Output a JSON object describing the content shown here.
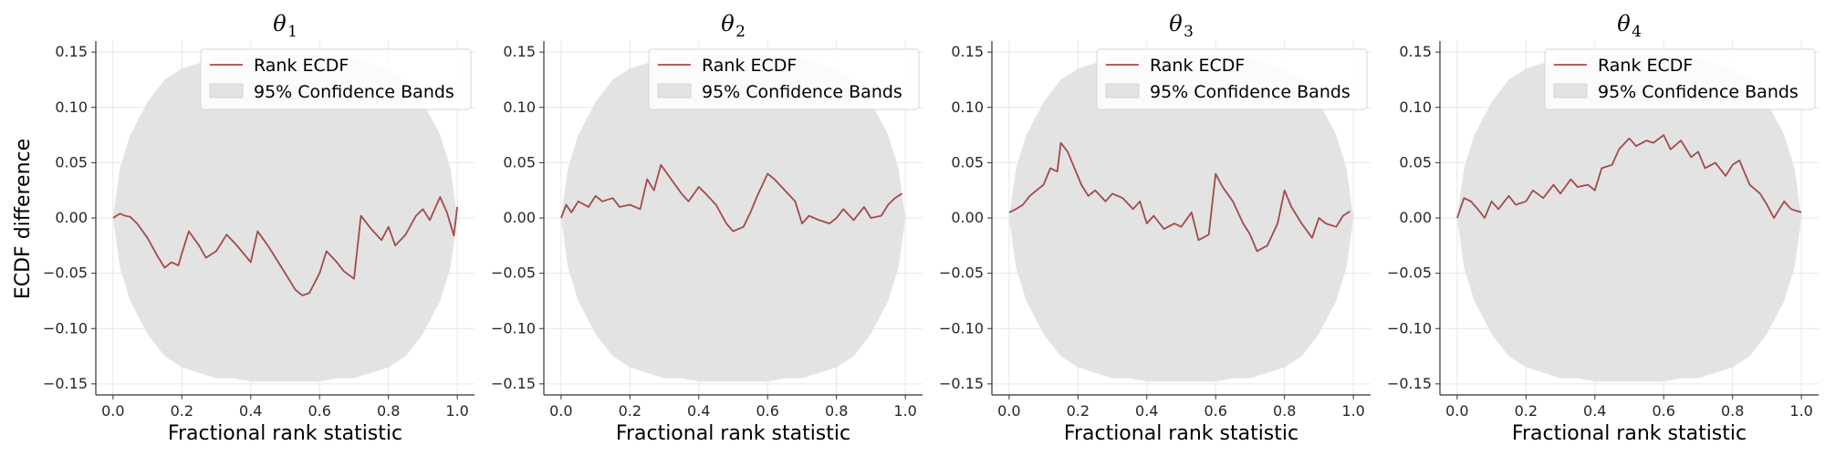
{
  "figure": {
    "ylabel": "ECDF difference"
  },
  "colors": {
    "line": "#a34a4a",
    "band": "#e3e3e3",
    "grid": "#e6e6e6",
    "axis": "#333333"
  },
  "chart_data": [
    {
      "type": "line",
      "title_symbol": "θ",
      "title_index": "1",
      "xlabel": "Fractional rank statistic",
      "ylabel": "ECDF difference",
      "xlim": [
        -0.05,
        1.05
      ],
      "ylim": [
        -0.16,
        0.16
      ],
      "xticks": [
        "0.0",
        "0.2",
        "0.4",
        "0.6",
        "0.8",
        "1.0"
      ],
      "yticks": [
        "0.15",
        "0.10",
        "0.05",
        "0.00",
        "−0.05",
        "−0.10",
        "−0.15"
      ],
      "grid": true,
      "legend_position": "top-right",
      "legend": [
        "Rank ECDF",
        "95% Confidence Bands"
      ],
      "bands": {
        "x": [
          0.0,
          0.02,
          0.05,
          0.1,
          0.15,
          0.2,
          0.25,
          0.3,
          0.35,
          0.4,
          0.45,
          0.5,
          0.55,
          0.6,
          0.65,
          0.7,
          0.75,
          0.8,
          0.85,
          0.9,
          0.95,
          0.98,
          1.0
        ],
        "upper": [
          0.0,
          0.045,
          0.075,
          0.105,
          0.125,
          0.135,
          0.14,
          0.145,
          0.145,
          0.148,
          0.148,
          0.148,
          0.148,
          0.148,
          0.145,
          0.145,
          0.14,
          0.135,
          0.125,
          0.105,
          0.075,
          0.045,
          0.0
        ],
        "lower": [
          0.0,
          -0.045,
          -0.075,
          -0.105,
          -0.125,
          -0.135,
          -0.14,
          -0.145,
          -0.145,
          -0.148,
          -0.148,
          -0.148,
          -0.148,
          -0.148,
          -0.145,
          -0.145,
          -0.14,
          -0.135,
          -0.125,
          -0.105,
          -0.075,
          -0.045,
          0.0
        ]
      },
      "series": [
        {
          "name": "Rank ECDF",
          "x": [
            0.0,
            0.02,
            0.035,
            0.05,
            0.07,
            0.1,
            0.13,
            0.15,
            0.17,
            0.19,
            0.2,
            0.22,
            0.25,
            0.27,
            0.3,
            0.33,
            0.36,
            0.4,
            0.42,
            0.45,
            0.47,
            0.5,
            0.53,
            0.55,
            0.57,
            0.6,
            0.62,
            0.65,
            0.67,
            0.7,
            0.72,
            0.75,
            0.78,
            0.8,
            0.82,
            0.85,
            0.88,
            0.9,
            0.92,
            0.95,
            0.97,
            0.99,
            1.0
          ],
          "y": [
            0.0,
            0.004,
            0.002,
            0.001,
            -0.005,
            -0.018,
            -0.035,
            -0.045,
            -0.04,
            -0.043,
            -0.032,
            -0.012,
            -0.025,
            -0.036,
            -0.03,
            -0.015,
            -0.025,
            -0.04,
            -0.012,
            -0.025,
            -0.035,
            -0.05,
            -0.065,
            -0.07,
            -0.068,
            -0.05,
            -0.03,
            -0.04,
            -0.048,
            -0.055,
            0.002,
            -0.01,
            -0.02,
            -0.008,
            -0.025,
            -0.015,
            0.002,
            0.008,
            -0.002,
            0.019,
            0.005,
            -0.016,
            0.01
          ]
        }
      ]
    },
    {
      "type": "line",
      "title_symbol": "θ",
      "title_index": "2",
      "xlabel": "Fractional rank statistic",
      "ylabel": "",
      "xlim": [
        -0.05,
        1.05
      ],
      "ylim": [
        -0.16,
        0.16
      ],
      "xticks": [
        "0.0",
        "0.2",
        "0.4",
        "0.6",
        "0.8",
        "1.0"
      ],
      "yticks": [
        "0.15",
        "0.10",
        "0.05",
        "0.00",
        "−0.05",
        "−0.10",
        "−0.15"
      ],
      "grid": true,
      "legend_position": "top-right",
      "legend": [
        "Rank ECDF",
        "95% Confidence Bands"
      ],
      "bands": {
        "x": [
          0.0,
          0.02,
          0.05,
          0.1,
          0.15,
          0.2,
          0.25,
          0.3,
          0.35,
          0.4,
          0.45,
          0.5,
          0.55,
          0.6,
          0.65,
          0.7,
          0.75,
          0.8,
          0.85,
          0.9,
          0.95,
          0.98,
          1.0
        ],
        "upper": [
          0.0,
          0.045,
          0.075,
          0.105,
          0.125,
          0.135,
          0.14,
          0.145,
          0.145,
          0.148,
          0.148,
          0.148,
          0.148,
          0.148,
          0.145,
          0.145,
          0.14,
          0.135,
          0.125,
          0.105,
          0.075,
          0.045,
          0.0
        ],
        "lower": [
          0.0,
          -0.045,
          -0.075,
          -0.105,
          -0.125,
          -0.135,
          -0.14,
          -0.145,
          -0.145,
          -0.148,
          -0.148,
          -0.148,
          -0.148,
          -0.148,
          -0.145,
          -0.145,
          -0.14,
          -0.135,
          -0.125,
          -0.105,
          -0.075,
          -0.045,
          0.0
        ]
      },
      "series": [
        {
          "name": "Rank ECDF",
          "x": [
            0.0,
            0.015,
            0.03,
            0.05,
            0.08,
            0.1,
            0.12,
            0.15,
            0.17,
            0.2,
            0.23,
            0.25,
            0.27,
            0.29,
            0.32,
            0.35,
            0.37,
            0.4,
            0.42,
            0.45,
            0.48,
            0.5,
            0.53,
            0.55,
            0.57,
            0.6,
            0.62,
            0.65,
            0.68,
            0.7,
            0.72,
            0.75,
            0.78,
            0.8,
            0.82,
            0.85,
            0.88,
            0.9,
            0.93,
            0.95,
            0.97,
            0.99
          ],
          "y": [
            0.0,
            0.012,
            0.005,
            0.015,
            0.01,
            0.02,
            0.015,
            0.018,
            0.01,
            0.012,
            0.008,
            0.035,
            0.025,
            0.048,
            0.035,
            0.022,
            0.015,
            0.028,
            0.022,
            0.012,
            -0.005,
            -0.012,
            -0.008,
            0.005,
            0.02,
            0.04,
            0.035,
            0.025,
            0.015,
            -0.005,
            0.002,
            -0.002,
            -0.005,
            0.0,
            0.008,
            -0.002,
            0.01,
            0.0,
            0.002,
            0.012,
            0.018,
            0.022
          ]
        }
      ]
    },
    {
      "type": "line",
      "title_symbol": "θ",
      "title_index": "3",
      "xlabel": "Fractional rank statistic",
      "ylabel": "",
      "xlim": [
        -0.05,
        1.05
      ],
      "ylim": [
        -0.16,
        0.16
      ],
      "xticks": [
        "0.0",
        "0.2",
        "0.4",
        "0.6",
        "0.8",
        "1.0"
      ],
      "yticks": [
        "0.15",
        "0.10",
        "0.05",
        "0.00",
        "−0.05",
        "−0.10",
        "−0.15"
      ],
      "grid": true,
      "legend_position": "top-right",
      "legend": [
        "Rank ECDF",
        "95% Confidence Bands"
      ],
      "bands": {
        "x": [
          0.0,
          0.02,
          0.05,
          0.1,
          0.15,
          0.2,
          0.25,
          0.3,
          0.35,
          0.4,
          0.45,
          0.5,
          0.55,
          0.6,
          0.65,
          0.7,
          0.75,
          0.8,
          0.85,
          0.9,
          0.95,
          0.98,
          1.0
        ],
        "upper": [
          0.0,
          0.045,
          0.075,
          0.105,
          0.125,
          0.135,
          0.14,
          0.145,
          0.145,
          0.148,
          0.148,
          0.148,
          0.148,
          0.148,
          0.145,
          0.145,
          0.14,
          0.135,
          0.125,
          0.105,
          0.075,
          0.045,
          0.0
        ],
        "lower": [
          0.0,
          -0.045,
          -0.075,
          -0.105,
          -0.125,
          -0.135,
          -0.14,
          -0.145,
          -0.145,
          -0.148,
          -0.148,
          -0.148,
          -0.148,
          -0.148,
          -0.145,
          -0.145,
          -0.14,
          -0.135,
          -0.125,
          -0.105,
          -0.075,
          -0.045,
          0.0
        ]
      },
      "series": [
        {
          "name": "Rank ECDF",
          "x": [
            0.0,
            0.02,
            0.04,
            0.06,
            0.08,
            0.1,
            0.12,
            0.14,
            0.15,
            0.17,
            0.19,
            0.21,
            0.23,
            0.25,
            0.28,
            0.3,
            0.33,
            0.36,
            0.38,
            0.4,
            0.42,
            0.45,
            0.48,
            0.5,
            0.53,
            0.55,
            0.58,
            0.6,
            0.62,
            0.65,
            0.68,
            0.7,
            0.72,
            0.75,
            0.78,
            0.8,
            0.82,
            0.85,
            0.88,
            0.9,
            0.92,
            0.95,
            0.97,
            0.99
          ],
          "y": [
            0.005,
            0.008,
            0.012,
            0.02,
            0.025,
            0.03,
            0.045,
            0.042,
            0.068,
            0.06,
            0.045,
            0.03,
            0.02,
            0.025,
            0.015,
            0.022,
            0.018,
            0.008,
            0.015,
            -0.005,
            0.002,
            -0.01,
            -0.005,
            -0.008,
            0.005,
            -0.02,
            -0.015,
            0.04,
            0.028,
            0.015,
            -0.005,
            -0.015,
            -0.03,
            -0.025,
            -0.005,
            0.025,
            0.01,
            -0.005,
            -0.018,
            0.0,
            -0.005,
            -0.008,
            0.002,
            0.006
          ]
        }
      ]
    },
    {
      "type": "line",
      "title_symbol": "θ",
      "title_index": "4",
      "xlabel": "Fractional rank statistic",
      "ylabel": "",
      "xlim": [
        -0.05,
        1.05
      ],
      "ylim": [
        -0.16,
        0.16
      ],
      "xticks": [
        "0.0",
        "0.2",
        "0.4",
        "0.6",
        "0.8",
        "1.0"
      ],
      "yticks": [
        "0.15",
        "0.10",
        "0.05",
        "0.00",
        "−0.05",
        "−0.10",
        "−0.15"
      ],
      "grid": true,
      "legend_position": "top-right",
      "legend": [
        "Rank ECDF",
        "95% Confidence Bands"
      ],
      "bands": {
        "x": [
          0.0,
          0.02,
          0.05,
          0.1,
          0.15,
          0.2,
          0.25,
          0.3,
          0.35,
          0.4,
          0.45,
          0.5,
          0.55,
          0.6,
          0.65,
          0.7,
          0.75,
          0.8,
          0.85,
          0.9,
          0.95,
          0.98,
          1.0
        ],
        "upper": [
          0.0,
          0.045,
          0.075,
          0.105,
          0.125,
          0.135,
          0.14,
          0.145,
          0.145,
          0.148,
          0.148,
          0.148,
          0.148,
          0.148,
          0.145,
          0.145,
          0.14,
          0.135,
          0.125,
          0.105,
          0.075,
          0.045,
          0.0
        ],
        "lower": [
          0.0,
          -0.045,
          -0.075,
          -0.105,
          -0.125,
          -0.135,
          -0.14,
          -0.145,
          -0.145,
          -0.148,
          -0.148,
          -0.148,
          -0.148,
          -0.148,
          -0.145,
          -0.145,
          -0.14,
          -0.135,
          -0.125,
          -0.105,
          -0.075,
          -0.045,
          0.0
        ]
      },
      "series": [
        {
          "name": "Rank ECDF",
          "x": [
            0.0,
            0.02,
            0.04,
            0.06,
            0.08,
            0.1,
            0.12,
            0.15,
            0.17,
            0.2,
            0.22,
            0.25,
            0.28,
            0.3,
            0.33,
            0.35,
            0.38,
            0.4,
            0.42,
            0.45,
            0.47,
            0.5,
            0.52,
            0.55,
            0.57,
            0.6,
            0.62,
            0.65,
            0.68,
            0.7,
            0.72,
            0.75,
            0.78,
            0.8,
            0.82,
            0.85,
            0.88,
            0.9,
            0.92,
            0.95,
            0.97,
            1.0
          ],
          "y": [
            0.0,
            0.018,
            0.015,
            0.008,
            0.0,
            0.015,
            0.008,
            0.02,
            0.012,
            0.015,
            0.025,
            0.018,
            0.03,
            0.022,
            0.035,
            0.028,
            0.03,
            0.025,
            0.045,
            0.048,
            0.062,
            0.072,
            0.065,
            0.07,
            0.068,
            0.075,
            0.062,
            0.07,
            0.055,
            0.06,
            0.045,
            0.05,
            0.038,
            0.048,
            0.052,
            0.03,
            0.022,
            0.012,
            0.0,
            0.015,
            0.008,
            0.005
          ]
        }
      ]
    }
  ]
}
